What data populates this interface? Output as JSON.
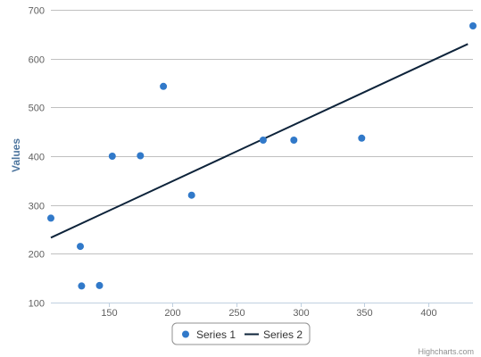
{
  "chart_data": {
    "type": "scatter",
    "title": "",
    "xlabel": "",
    "ylabel": "Values",
    "xlim": [
      105,
      435
    ],
    "ylim": [
      100,
      700
    ],
    "x_ticks": [
      150,
      200,
      250,
      300,
      350,
      400
    ],
    "y_ticks": [
      100,
      200,
      300,
      400,
      500,
      600,
      700
    ],
    "grid": "horizontal",
    "legend_position": "bottom-center",
    "series": [
      {
        "name": "Series 1",
        "type": "scatter",
        "color": "#3179c9",
        "points": [
          [
            105,
            273
          ],
          [
            128,
            215
          ],
          [
            129,
            134
          ],
          [
            143,
            135
          ],
          [
            153,
            400
          ],
          [
            175,
            401
          ],
          [
            193,
            543
          ],
          [
            215,
            320
          ],
          [
            271,
            433
          ],
          [
            295,
            433
          ],
          [
            348,
            437
          ],
          [
            435,
            667
          ]
        ]
      },
      {
        "name": "Series 2",
        "type": "line",
        "color": "#0d233a",
        "points": [
          [
            105,
            233
          ],
          [
            431,
            630
          ]
        ]
      }
    ]
  },
  "credits": "Highcharts.com"
}
